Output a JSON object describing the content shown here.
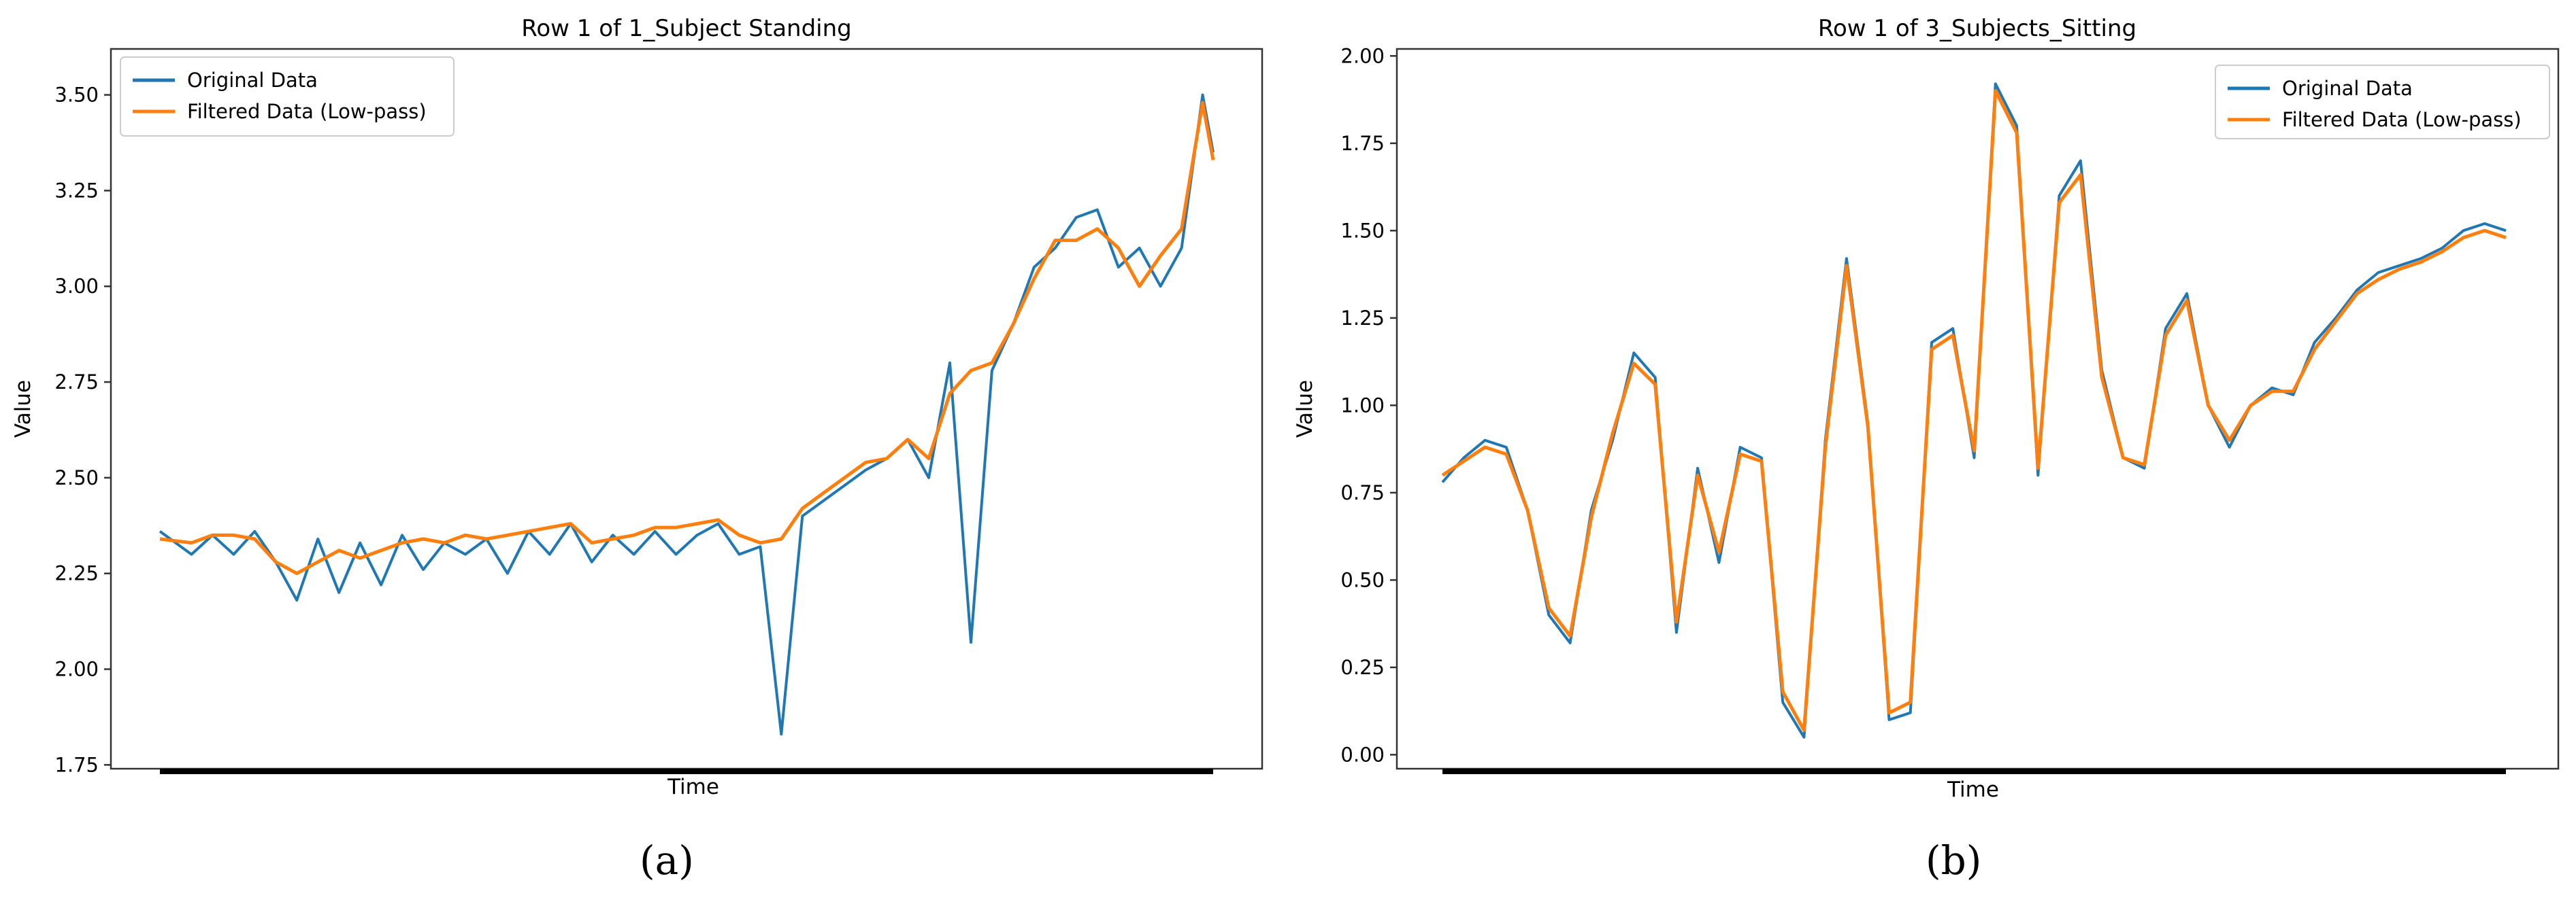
{
  "colors": {
    "original": "#1f77b4",
    "filtered": "#ff7f0e"
  },
  "chart_data": [
    {
      "type": "line",
      "title": "Row 1 of 1_Subject Standing",
      "xlabel": "Time",
      "ylabel": "Value",
      "ylim": [
        1.74,
        3.62
      ],
      "yticks": [
        1.75,
        2.0,
        2.25,
        2.5,
        2.75,
        3.0,
        3.25,
        3.5
      ],
      "ytick_labels": [
        "1.75",
        "2.00",
        "2.25",
        "2.50",
        "2.75",
        "3.00",
        "3.25",
        "3.50"
      ],
      "legend": {
        "placement": "top-left",
        "entries": [
          "Original Data",
          "Filtered Data (Low-pass)"
        ]
      },
      "caption": "(a)",
      "x": [
        0.0,
        0.03,
        0.05,
        0.07,
        0.09,
        0.11,
        0.13,
        0.15,
        0.17,
        0.19,
        0.21,
        0.23,
        0.25,
        0.27,
        0.29,
        0.31,
        0.33,
        0.35,
        0.37,
        0.39,
        0.41,
        0.43,
        0.45,
        0.47,
        0.49,
        0.51,
        0.53,
        0.55,
        0.57,
        0.59,
        0.61,
        0.63,
        0.65,
        0.67,
        0.69,
        0.71,
        0.73,
        0.75,
        0.77,
        0.79,
        0.81,
        0.83,
        0.85,
        0.87,
        0.89,
        0.91,
        0.93,
        0.95,
        0.97,
        0.99,
        1.0
      ],
      "series": [
        {
          "name": "Original Data",
          "values": [
            2.36,
            2.3,
            2.35,
            2.3,
            2.36,
            2.28,
            2.18,
            2.34,
            2.2,
            2.33,
            2.22,
            2.35,
            2.26,
            2.33,
            2.3,
            2.34,
            2.25,
            2.36,
            2.3,
            2.38,
            2.28,
            2.35,
            2.3,
            2.36,
            2.3,
            2.35,
            2.38,
            2.3,
            2.32,
            1.83,
            2.4,
            2.44,
            2.48,
            2.52,
            2.55,
            2.6,
            2.5,
            2.8,
            2.07,
            2.78,
            2.9,
            3.05,
            3.1,
            3.18,
            3.2,
            3.05,
            3.1,
            3.0,
            3.1,
            3.5,
            3.35
          ]
        },
        {
          "name": "Filtered Data (Low-pass)",
          "values": [
            2.34,
            2.33,
            2.35,
            2.35,
            2.34,
            2.28,
            2.25,
            2.28,
            2.31,
            2.29,
            2.31,
            2.33,
            2.34,
            2.33,
            2.35,
            2.34,
            2.35,
            2.36,
            2.37,
            2.38,
            2.33,
            2.34,
            2.35,
            2.37,
            2.37,
            2.38,
            2.39,
            2.35,
            2.33,
            2.34,
            2.42,
            2.46,
            2.5,
            2.54,
            2.55,
            2.6,
            2.55,
            2.72,
            2.78,
            2.8,
            2.9,
            3.02,
            3.12,
            3.12,
            3.15,
            3.1,
            3.0,
            3.08,
            3.15,
            3.48,
            3.33
          ]
        }
      ]
    },
    {
      "type": "line",
      "title": "Row 1 of 3_Subjects_Sitting",
      "xlabel": "Time",
      "ylabel": "Value",
      "ylim": [
        -0.04,
        2.02
      ],
      "yticks": [
        0.0,
        0.25,
        0.5,
        0.75,
        1.0,
        1.25,
        1.5,
        1.75,
        2.0
      ],
      "ytick_labels": [
        "0.00",
        "0.25",
        "0.50",
        "0.75",
        "1.00",
        "1.25",
        "1.50",
        "1.75",
        "2.00"
      ],
      "legend": {
        "placement": "top-right",
        "entries": [
          "Original Data",
          "Filtered Data (Low-pass)"
        ]
      },
      "caption": "(b)",
      "x": [
        0.0,
        0.02,
        0.04,
        0.06,
        0.08,
        0.1,
        0.12,
        0.14,
        0.16,
        0.18,
        0.2,
        0.22,
        0.24,
        0.26,
        0.28,
        0.3,
        0.32,
        0.34,
        0.36,
        0.38,
        0.4,
        0.42,
        0.44,
        0.46,
        0.48,
        0.5,
        0.52,
        0.54,
        0.56,
        0.58,
        0.6,
        0.62,
        0.64,
        0.66,
        0.68,
        0.7,
        0.72,
        0.74,
        0.76,
        0.78,
        0.8,
        0.82,
        0.84,
        0.86,
        0.88,
        0.9,
        0.92,
        0.94,
        0.96,
        0.98,
        1.0
      ],
      "series": [
        {
          "name": "Original Data",
          "values": [
            0.78,
            0.85,
            0.9,
            0.88,
            0.7,
            0.4,
            0.32,
            0.7,
            0.9,
            1.15,
            1.08,
            0.35,
            0.82,
            0.55,
            0.88,
            0.85,
            0.15,
            0.05,
            0.9,
            1.42,
            0.95,
            0.1,
            0.12,
            1.18,
            1.22,
            0.85,
            1.92,
            1.8,
            0.8,
            1.6,
            1.7,
            1.1,
            0.85,
            0.82,
            1.22,
            1.32,
            1.0,
            0.88,
            1.0,
            1.05,
            1.03,
            1.18,
            1.25,
            1.33,
            1.38,
            1.4,
            1.42,
            1.45,
            1.5,
            1.52,
            1.5
          ]
        },
        {
          "name": "Filtered Data (Low-pass)",
          "values": [
            0.8,
            0.84,
            0.88,
            0.86,
            0.7,
            0.42,
            0.34,
            0.68,
            0.92,
            1.12,
            1.06,
            0.38,
            0.8,
            0.58,
            0.86,
            0.84,
            0.18,
            0.07,
            0.88,
            1.4,
            0.94,
            0.12,
            0.15,
            1.16,
            1.2,
            0.87,
            1.9,
            1.78,
            0.82,
            1.58,
            1.66,
            1.08,
            0.85,
            0.83,
            1.2,
            1.3,
            1.0,
            0.9,
            1.0,
            1.04,
            1.04,
            1.16,
            1.24,
            1.32,
            1.36,
            1.39,
            1.41,
            1.44,
            1.48,
            1.5,
            1.48
          ]
        }
      ]
    }
  ]
}
